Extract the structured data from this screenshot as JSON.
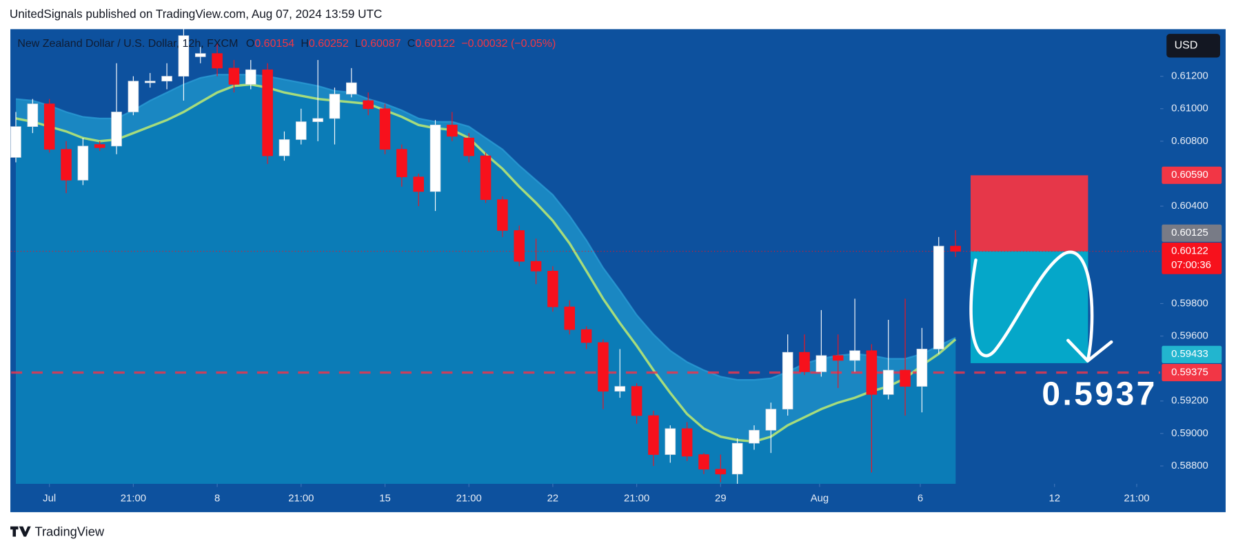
{
  "header": "UnitedSignals published on TradingView.com, Aug 07, 2024 13:59 UTC",
  "footer": "TradingView",
  "chart_data": {
    "type": "candlestick",
    "legend": {
      "title": "New Zealand Dollar / U.S. Dollar, 12h, FXCM",
      "items": [
        {
          "key": "O",
          "value": "0.60154"
        },
        {
          "key": "H",
          "value": "0.60252"
        },
        {
          "key": "L",
          "value": "0.60087"
        },
        {
          "key": "C",
          "value": "0.60122"
        }
      ],
      "change": "−0.00032 (−0.05%)"
    },
    "currency": "USD",
    "up_color": "#ffffff",
    "down_color": "#f7111c",
    "open": [
      0.607,
      0.6089,
      0.6103,
      0.6075,
      0.6056,
      0.6078,
      0.6077,
      0.6098,
      0.6116,
      0.6117,
      0.612,
      0.6132,
      0.6134,
      0.6125,
      0.6115,
      0.6124,
      0.6071,
      0.6081,
      0.6092,
      0.6094,
      0.6109,
      0.6105,
      0.61,
      0.6075,
      0.6058,
      0.6049,
      0.609,
      0.6082,
      0.6071,
      0.6044,
      0.6025,
      0.6006,
      0.6,
      0.5978,
      0.5964,
      0.5956,
      0.5926,
      0.5929,
      0.5911,
      0.5887,
      0.5903,
      0.5887,
      0.5878,
      0.5875,
      0.5894,
      0.5902,
      0.5915,
      0.595,
      0.5938,
      0.5948,
      0.5945,
      0.5951,
      0.5924,
      0.5939,
      0.5929,
      0.5952,
      0.60154
    ],
    "high": [
      0.6098,
      0.6106,
      0.6106,
      0.608,
      0.6082,
      0.608,
      0.6128,
      0.612,
      0.6122,
      0.6128,
      0.615,
      0.6138,
      0.614,
      0.613,
      0.613,
      0.6128,
      0.6086,
      0.61,
      0.613,
      0.6113,
      0.6125,
      0.611,
      0.6103,
      0.6078,
      0.606,
      0.6093,
      0.6098,
      0.6085,
      0.6073,
      0.6046,
      0.6028,
      0.602,
      0.6003,
      0.5982,
      0.5966,
      0.5958,
      0.5952,
      0.5931,
      0.5914,
      0.5905,
      0.5907,
      0.5888,
      0.5887,
      0.5897,
      0.5905,
      0.5919,
      0.5961,
      0.5961,
      0.5976,
      0.5961,
      0.5983,
      0.5955,
      0.597,
      0.5983,
      0.5965,
      0.6021,
      0.60252
    ],
    "low": [
      0.6067,
      0.6085,
      0.6073,
      0.6048,
      0.6053,
      0.6074,
      0.6072,
      0.6096,
      0.6113,
      0.6112,
      0.6105,
      0.6128,
      0.612,
      0.611,
      0.6112,
      0.6066,
      0.6068,
      0.6078,
      0.608,
      0.6078,
      0.6107,
      0.6096,
      0.6072,
      0.6052,
      0.604,
      0.6037,
      0.608,
      0.6067,
      0.6042,
      0.6021,
      0.6003,
      0.5992,
      0.5975,
      0.5961,
      0.5952,
      0.5915,
      0.5922,
      0.5906,
      0.588,
      0.5882,
      0.5883,
      0.5875,
      0.587,
      0.5869,
      0.589,
      0.5888,
      0.5911,
      0.5936,
      0.5935,
      0.5928,
      0.5938,
      0.5876,
      0.5921,
      0.5911,
      0.5913,
      0.5949,
      0.60087
    ],
    "close": [
      0.6089,
      0.6103,
      0.6075,
      0.6056,
      0.6077,
      0.6076,
      0.6098,
      0.6117,
      0.6117,
      0.612,
      0.6145,
      0.6134,
      0.6125,
      0.6115,
      0.6124,
      0.6071,
      0.6081,
      0.6092,
      0.6094,
      0.6109,
      0.6116,
      0.61,
      0.6075,
      0.6058,
      0.6049,
      0.609,
      0.6083,
      0.6071,
      0.6044,
      0.6025,
      0.6006,
      0.6,
      0.5978,
      0.5964,
      0.5956,
      0.5926,
      0.5929,
      0.5911,
      0.5887,
      0.5903,
      0.5886,
      0.5878,
      0.5875,
      0.5894,
      0.5902,
      0.5915,
      0.595,
      0.5938,
      0.5948,
      0.5945,
      0.5951,
      0.5924,
      0.5939,
      0.5929,
      0.5952,
      0.60154,
      0.60122
    ],
    "series": [
      {
        "color": "#2a9bd4",
        "values": [
          0.6106,
          0.6105,
          0.6102,
          0.6098,
          0.6095,
          0.6094,
          0.6094,
          0.6099,
          0.6105,
          0.611,
          0.6115,
          0.6119,
          0.6121,
          0.6121,
          0.6121,
          0.612,
          0.6118,
          0.6116,
          0.6114,
          0.6111,
          0.611,
          0.6106,
          0.6103,
          0.6099,
          0.6094,
          0.6092,
          0.6092,
          0.6089,
          0.6082,
          0.6075,
          0.6065,
          0.6056,
          0.6047,
          0.6034,
          0.6019,
          0.6002,
          0.5988,
          0.5973,
          0.5961,
          0.5951,
          0.5944,
          0.5939,
          0.5935,
          0.5933,
          0.5933,
          0.5934,
          0.5938,
          0.5943,
          0.5946,
          0.5948,
          0.5949,
          0.5948,
          0.5946,
          0.5946,
          0.5949,
          0.5954,
          0.5959
        ]
      },
      {
        "color": "#a6dc7c",
        "values": [
          0.6094,
          0.6092,
          0.6089,
          0.6086,
          0.6082,
          0.608,
          0.6081,
          0.6085,
          0.6089,
          0.6093,
          0.6098,
          0.6104,
          0.611,
          0.6114,
          0.6115,
          0.6113,
          0.611,
          0.6108,
          0.6106,
          0.6105,
          0.6104,
          0.6103,
          0.6099,
          0.6095,
          0.609,
          0.6088,
          0.6087,
          0.6082,
          0.6072,
          0.6063,
          0.6052,
          0.6042,
          0.6031,
          0.6017,
          0.6,
          0.5983,
          0.5968,
          0.5954,
          0.5939,
          0.5925,
          0.5912,
          0.5903,
          0.5898,
          0.5896,
          0.5895,
          0.5898,
          0.5905,
          0.591,
          0.5915,
          0.5919,
          0.5922,
          0.5926,
          0.5929,
          0.5934,
          0.5942,
          0.5949,
          0.5958
        ]
      }
    ],
    "xlim": [
      -0.28,
      68.2
    ],
    "xticks": [
      {
        "value": 2,
        "label": "Jul"
      },
      {
        "value": 7,
        "label": "21:00"
      },
      {
        "value": 12,
        "label": "8"
      },
      {
        "value": 17,
        "label": "21:00"
      },
      {
        "value": 22,
        "label": "15"
      },
      {
        "value": 27,
        "label": "21:00"
      },
      {
        "value": 32,
        "label": "22"
      },
      {
        "value": 37,
        "label": "21:00"
      },
      {
        "value": 42,
        "label": "29"
      },
      {
        "value": 47.9,
        "label": "Aug"
      },
      {
        "value": 53.9,
        "label": "6"
      },
      {
        "value": 61.9,
        "label": "12"
      },
      {
        "value": 66.8,
        "label": "21:00"
      }
    ],
    "ylim": [
      0.5869,
      0.6149
    ],
    "yticks": [
      {
        "value": 0.612,
        "label": "0.61200"
      },
      {
        "value": 0.61,
        "label": "0.61000"
      },
      {
        "value": 0.608,
        "label": "0.60800"
      },
      {
        "value": 0.604,
        "label": "0.60400"
      },
      {
        "value": 0.598,
        "label": "0.59800"
      },
      {
        "value": 0.596,
        "label": "0.59600"
      },
      {
        "value": 0.592,
        "label": "0.59200"
      },
      {
        "value": 0.59,
        "label": "0.59000"
      },
      {
        "value": 0.588,
        "label": "0.58800"
      }
    ],
    "position": {
      "start": 56.9,
      "end": 63.9,
      "stop": 0.6059,
      "entry": 0.60122,
      "target": 0.59433
    },
    "level": 0.59375,
    "current": 0.60122,
    "price_labels": [
      {
        "value": 0.6059,
        "label": "0.60590",
        "color": "#f23645"
      },
      {
        "value": 0.60125,
        "label": "0.60125",
        "color": "#787b86"
      },
      {
        "value": 0.60122,
        "label": "0.60122",
        "color": "#f7111c",
        "countdown": "07:00:36"
      },
      {
        "value": 0.59433,
        "label": "0.59433",
        "color": "#22b5cf"
      },
      {
        "value": 0.59375,
        "label": "0.59375",
        "color": "#f23645"
      }
    ],
    "annotation": "0.5937"
  }
}
